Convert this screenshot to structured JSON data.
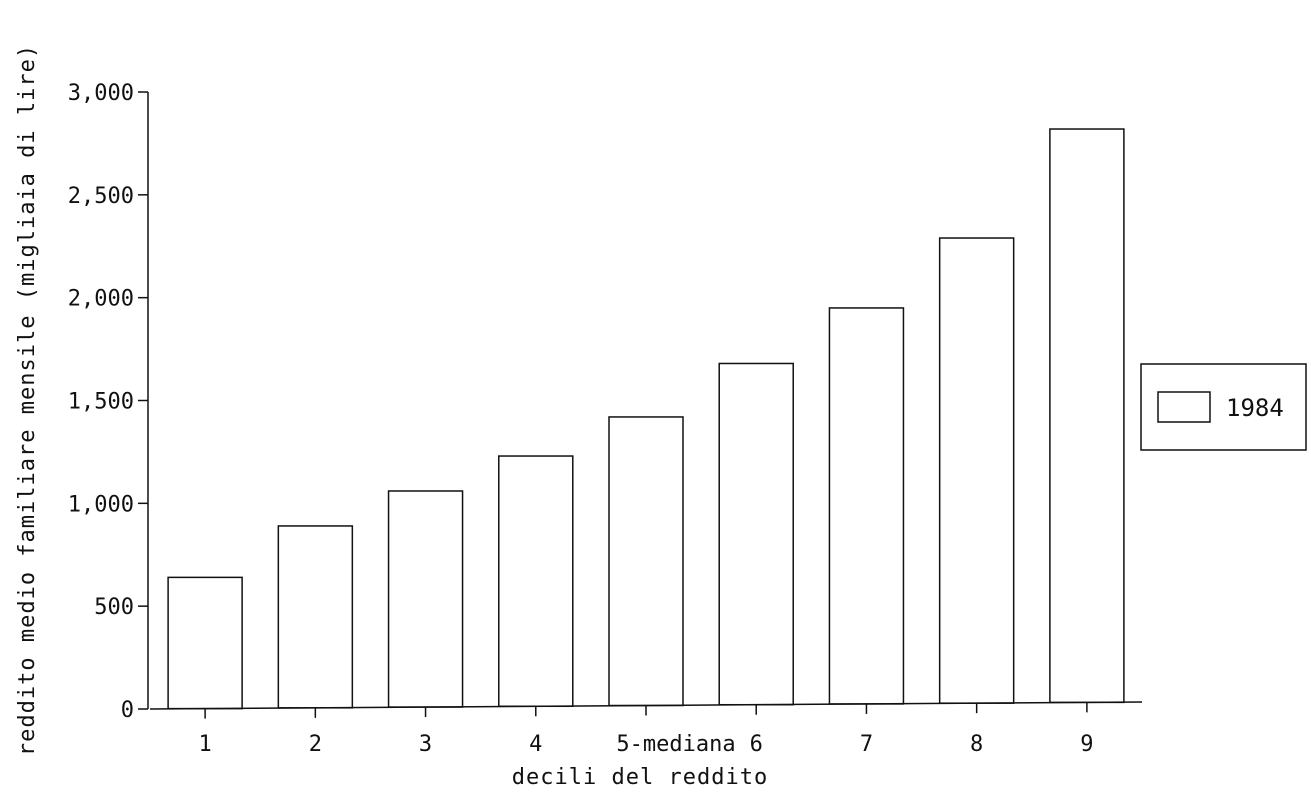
{
  "chart_data": {
    "type": "bar",
    "xlabel": "decili del reddito",
    "ylabel": "reddito medio familiare mensile (migliaia di lire)",
    "categories": [
      "1",
      "2",
      "3",
      "4",
      "5-mediana",
      "6",
      "7",
      "8",
      "9"
    ],
    "series": [
      {
        "name": "1984",
        "values": [
          640,
          890,
          1060,
          1230,
          1420,
          1680,
          1950,
          2290,
          2820
        ]
      }
    ],
    "ylim": [
      0,
      3000
    ],
    "yticks": [
      "0",
      "500",
      "1,000",
      "1,500",
      "2,000",
      "2,500",
      "3,000"
    ],
    "legend_position": "right",
    "grid": false,
    "colors": {
      "bar_fill": "#ffffff",
      "stroke": "#111111"
    }
  }
}
